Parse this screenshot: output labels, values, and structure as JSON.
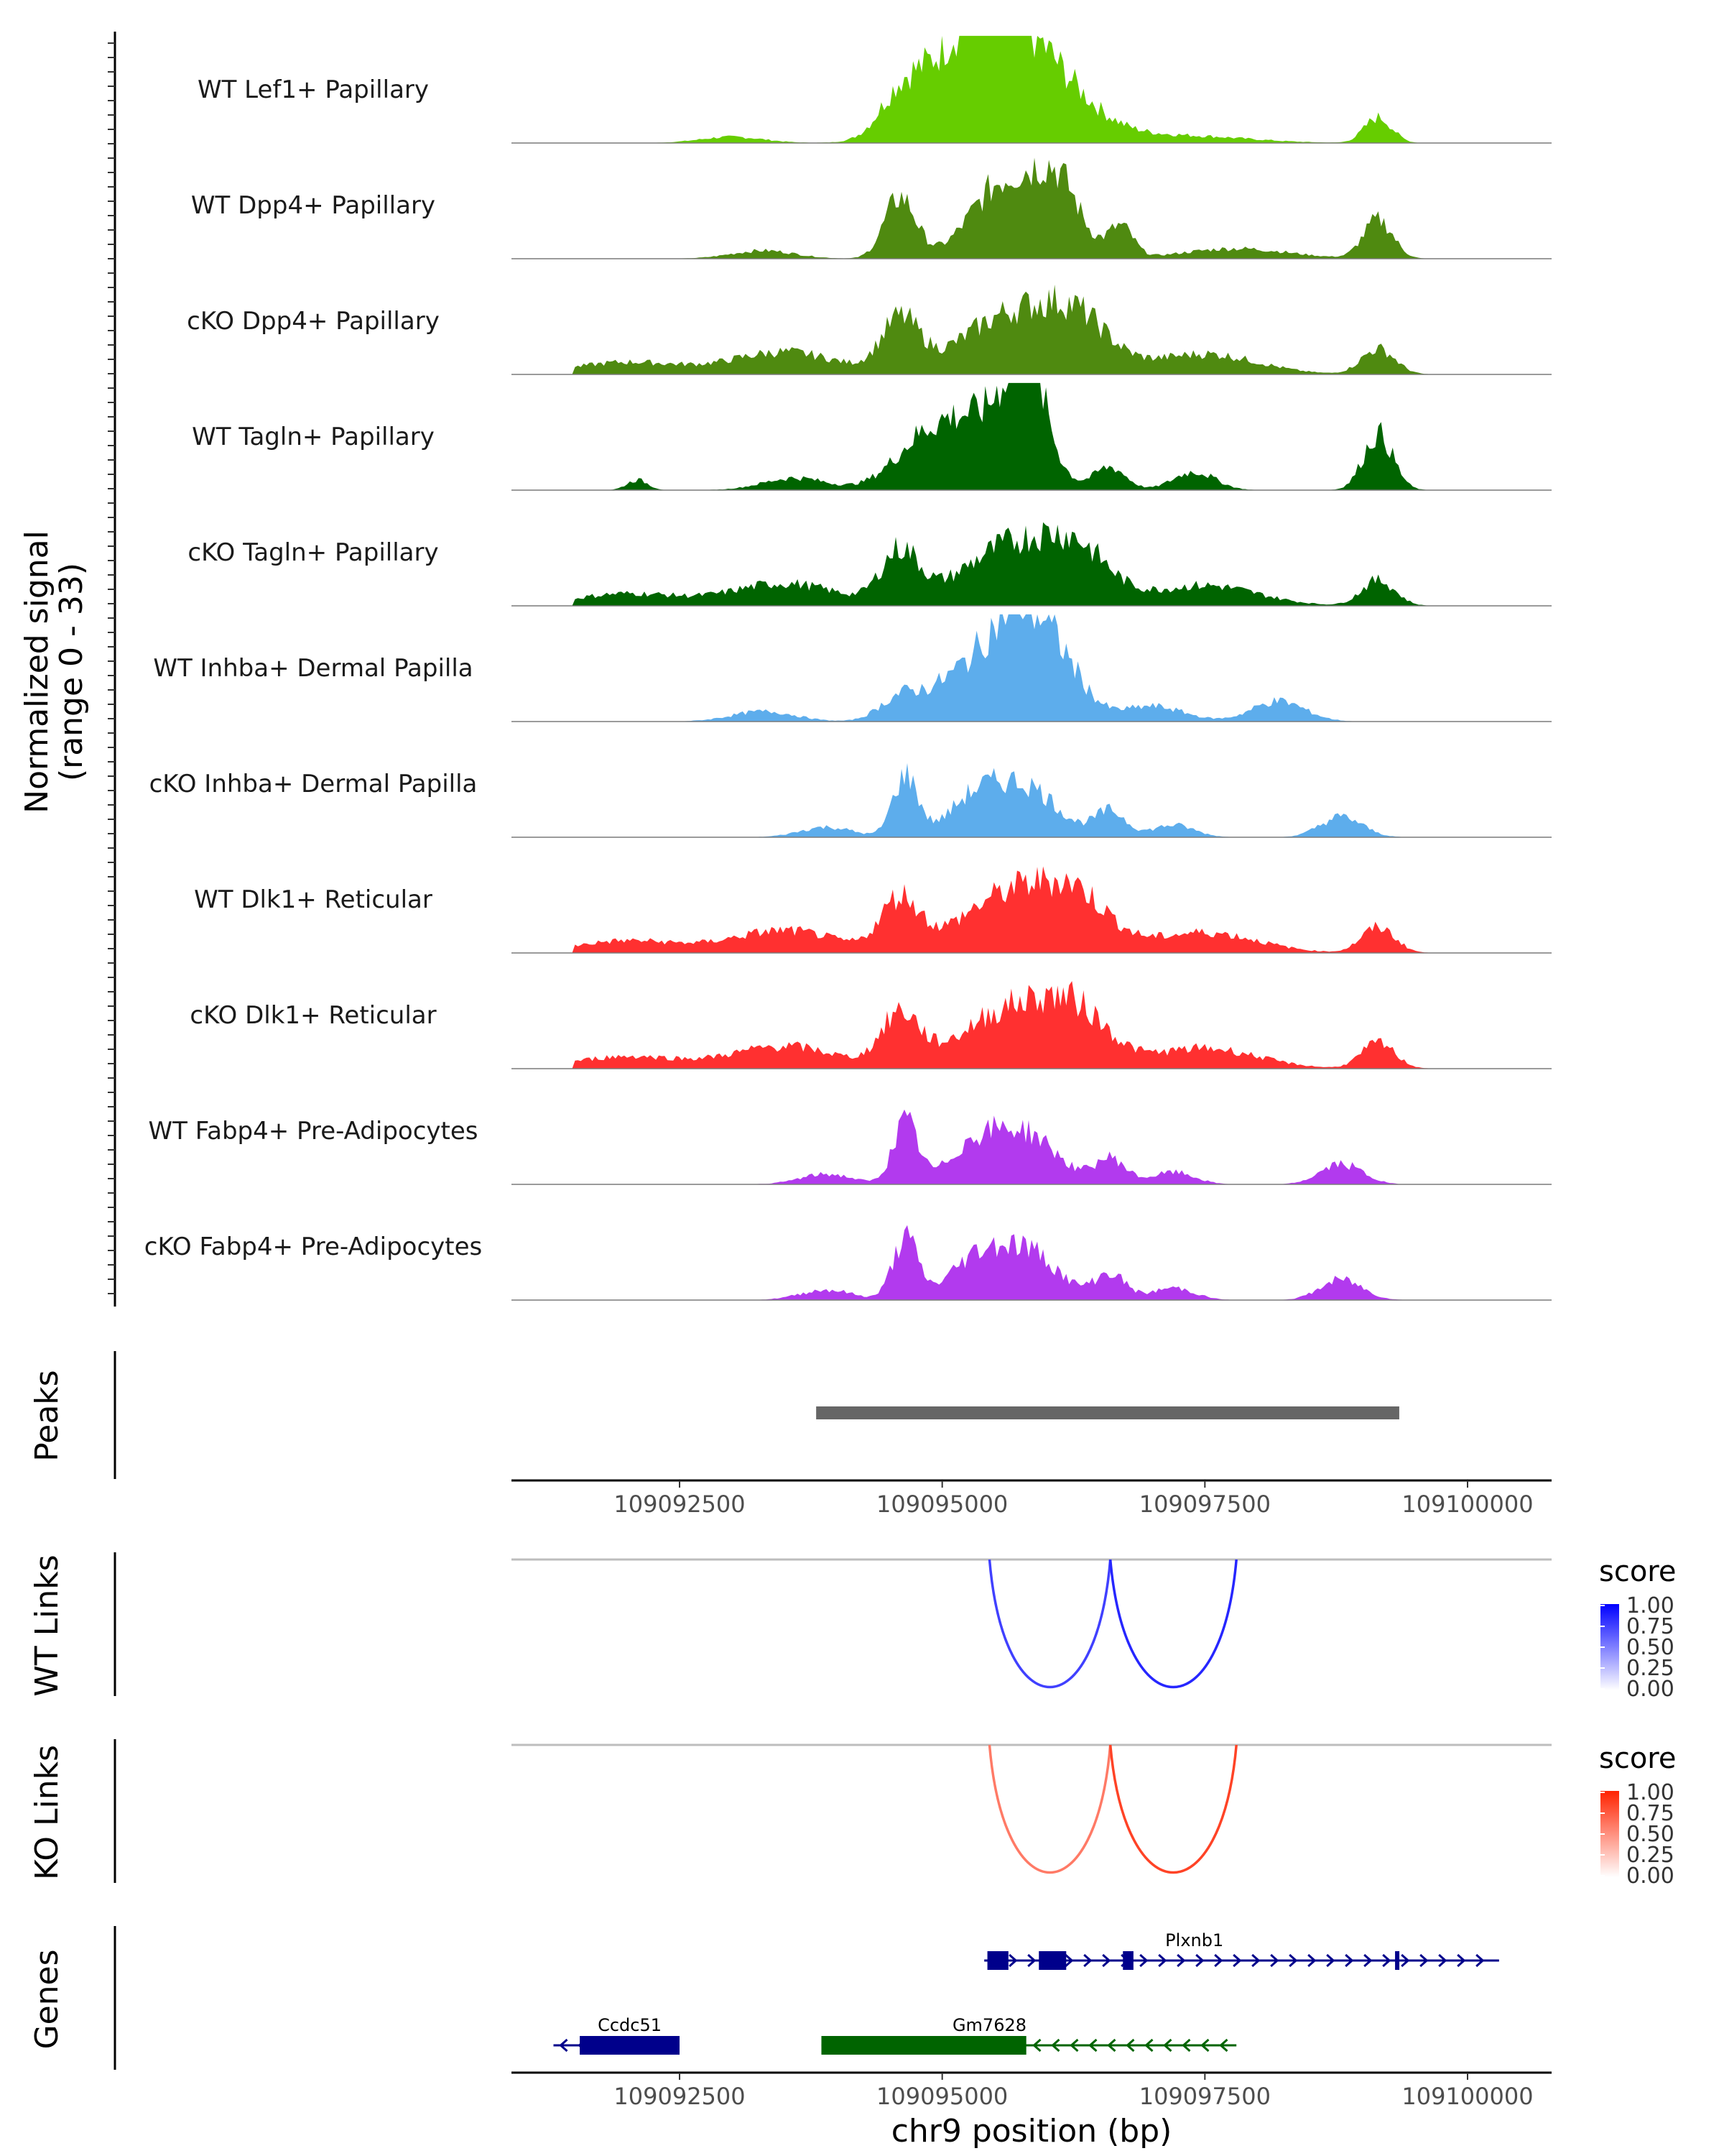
{
  "chart_data": {
    "type": "area",
    "title": "",
    "xlabel": "chr9 position (bp)",
    "x_range": [
      109090900,
      109100800
    ],
    "x_ticks": [
      "109092500",
      "109095000",
      "109097500",
      "109100000"
    ],
    "coverage": {
      "ylabel_line1": "Normalized signal",
      "ylabel_line2": "(range 0 - 33)",
      "y_range": [
        0,
        33
      ],
      "tracks": [
        {
          "name": "WT Lef1+ Papillary",
          "color": "#66CD00",
          "profile": "lef"
        },
        {
          "name": "WT Dpp4+ Papillary",
          "color": "#4F8A10",
          "profile": "dpp"
        },
        {
          "name": "cKO Dpp4+ Papillary",
          "color": "#4F8A10",
          "profile": "broad"
        },
        {
          "name": "WT Tagln+ Papillary",
          "color": "#006400",
          "profile": "tagln"
        },
        {
          "name": "cKO Tagln+ Papillary",
          "color": "#006400",
          "profile": "broad"
        },
        {
          "name": "WT Inhba+ Dermal Papilla",
          "color": "#5DADEC",
          "profile": "inhba"
        },
        {
          "name": "cKO Inhba+ Dermal Papilla",
          "color": "#5DADEC",
          "profile": "sparse"
        },
        {
          "name": "WT Dlk1+ Reticular",
          "color": "#FF3030",
          "profile": "broad"
        },
        {
          "name": "cKO Dlk1+ Reticular",
          "color": "#FF3030",
          "profile": "broad"
        },
        {
          "name": "WT Fabp4+ Pre-Adipocytes",
          "color": "#B23AEE",
          "profile": "sparse"
        },
        {
          "name": "cKO Fabp4+ Pre-Adipocytes",
          "color": "#B23AEE",
          "profile": "sparse"
        }
      ]
    },
    "peaks": {
      "label": "Peaks",
      "color": "#666666",
      "regions": [
        {
          "start": 109093800,
          "end": 109099350
        }
      ]
    },
    "wt_links": {
      "label": "WT Links",
      "legend_title": "score",
      "legend_ticks": [
        "1.00",
        "0.75",
        "0.50",
        "0.25",
        "0.00"
      ],
      "color_high": "#0000FF",
      "color_low": "#FFFFFF",
      "links": [
        {
          "start": 109095450,
          "end": 109096600,
          "score": 0.75
        },
        {
          "start": 109096600,
          "end": 109097800,
          "score": 0.85
        }
      ]
    },
    "ko_links": {
      "label": "KO Links",
      "legend_title": "score",
      "legend_ticks": [
        "1.00",
        "0.75",
        "0.50",
        "0.25",
        "0.00"
      ],
      "color_high": "#FF2200",
      "color_low": "#FFFFFF",
      "links": [
        {
          "start": 109095450,
          "end": 109096600,
          "score": 0.6
        },
        {
          "start": 109096600,
          "end": 109097800,
          "score": 0.85
        }
      ]
    },
    "genes": {
      "label": "Genes",
      "items": [
        {
          "name": "Plxnb1",
          "strand": "+",
          "start": 109095400,
          "end": 109100300,
          "color": "#00008B",
          "exons": [
            [
              109095430,
              109095630
            ],
            [
              109095920,
              109096180
            ],
            [
              109096720,
              109096820
            ],
            [
              109099310,
              109099350
            ]
          ]
        },
        {
          "name": "Ccdc51",
          "strand": "-",
          "start": 109091300,
          "end": 109092500,
          "color": "#00008B",
          "exons": [
            [
              109091550,
              109092500
            ]
          ]
        },
        {
          "name": "Gm7628",
          "strand": "-",
          "start": 109093850,
          "end": 109097800,
          "color": "#006400",
          "exons": [
            [
              109093850,
              109095800
            ]
          ]
        }
      ]
    }
  }
}
